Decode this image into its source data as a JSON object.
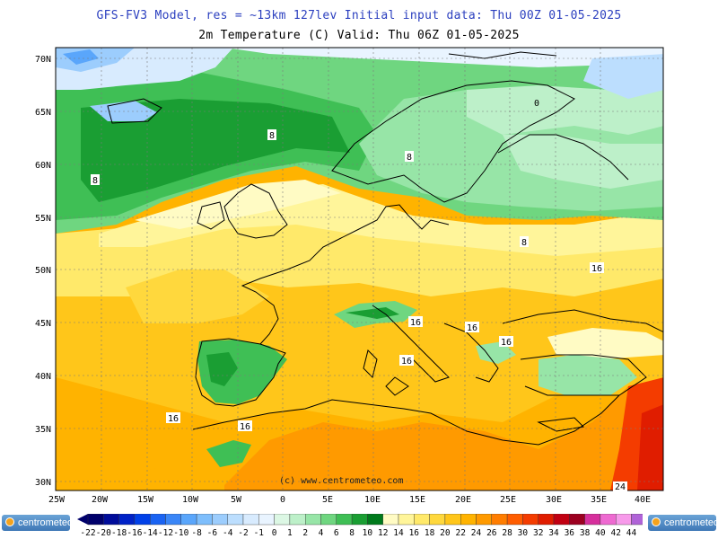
{
  "header": {
    "line1": "GFS-FV3 Model, res = ~13km 127lev   Initial input data: Thu 00Z 01-05-2025",
    "line2": "2m Temperature (C)  Valid: Thu 06Z 01-05-2025"
  },
  "watermark": "(c) www.centrometeo.com",
  "lon_labels": [
    "25W",
    "20W",
    "15W",
    "10W",
    "5W",
    "0",
    "5E",
    "10E",
    "15E",
    "20E",
    "25E",
    "30E",
    "35E",
    "40E"
  ],
  "lat_labels": [
    "70N",
    "65N",
    "60N",
    "55N",
    "50N",
    "45N",
    "40N",
    "35N",
    "30N"
  ],
  "contour_labels": [
    "0",
    "8",
    "8",
    "8",
    "8",
    "16",
    "16",
    "16",
    "16",
    "16",
    "16",
    "16",
    "24"
  ],
  "legend": {
    "labels": [
      "-22",
      "-20",
      "-18",
      "-16",
      "-14",
      "-12",
      "-10",
      "-8",
      "-6",
      "-4",
      "-2",
      "-1",
      "0",
      "1",
      "2",
      "4",
      "6",
      "8",
      "10",
      "12",
      "14",
      "16",
      "18",
      "20",
      "22",
      "24",
      "26",
      "28",
      "30",
      "32",
      "34",
      "36",
      "38",
      "40",
      "42",
      "44"
    ],
    "colors": [
      "#00006b",
      "#000c9a",
      "#0022c7",
      "#0040e8",
      "#1a63f2",
      "#3a86f7",
      "#5aa6fb",
      "#7ebefc",
      "#9ccdfd",
      "#bcdefe",
      "#d8ebfe",
      "#e9f4ff",
      "#dcf7e4",
      "#bdf0c9",
      "#97e5a7",
      "#6fd680",
      "#3fbf55",
      "#1a9e33",
      "#007a1c",
      "#fffbc4",
      "#fff59a",
      "#ffe96a",
      "#ffd83d",
      "#ffc61a",
      "#ffb300",
      "#ff9a00",
      "#ff7d00",
      "#ff5d00",
      "#f43c00",
      "#e01d00",
      "#c10012",
      "#9c0020",
      "#d62f9c",
      "#ee6ad1",
      "#f79aea",
      "#b063d8"
    ]
  },
  "logos": [
    "centrometeo",
    "centrometeo"
  ]
}
